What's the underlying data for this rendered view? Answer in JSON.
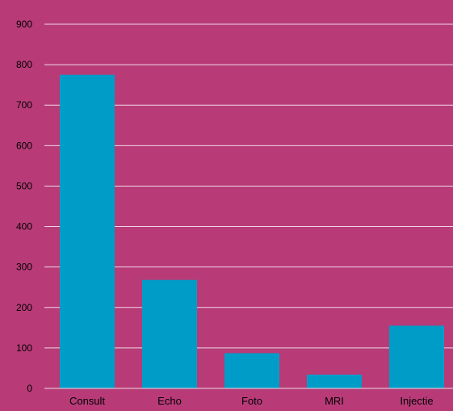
{
  "chart_data": {
    "type": "bar",
    "title": "",
    "xlabel": "",
    "ylabel": "",
    "categories": [
      "Consult",
      "Echo",
      "Foto",
      "MRI",
      "Injectie"
    ],
    "values": [
      775,
      268,
      87,
      34,
      155
    ],
    "ylim": [
      0,
      900
    ],
    "yticks": [
      0,
      100,
      200,
      300,
      400,
      500,
      600,
      700,
      800,
      900
    ],
    "grid": true,
    "legend": "none"
  },
  "colors": {
    "background": "#b83b78",
    "bar": "#009cc8",
    "gridline": "#f0d6e2",
    "text": "#000000"
  }
}
